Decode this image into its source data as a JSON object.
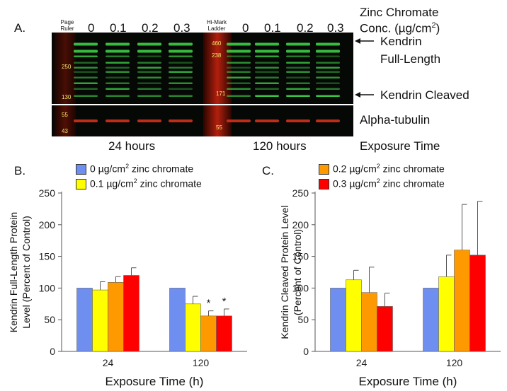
{
  "panelA": {
    "letter": "A.",
    "lane_small_left": "Page\nRuler",
    "lane_small_mid": "Hi-Mark\nLadder",
    "lanes_left": [
      "0",
      "0.1",
      "0.2",
      "0.3"
    ],
    "lanes_right": [
      "0",
      "0.1",
      "0.2",
      "0.3"
    ],
    "conc_title_1": "Zinc Chromate",
    "conc_title_2": "Conc. (µg/cm",
    "conc_sup": "2",
    "conc_close": ")",
    "marker_ruler": [
      "250",
      "130"
    ],
    "marker_hi": [
      "460",
      "238",
      "171"
    ],
    "marker_tubulin_left": [
      "55",
      "43"
    ],
    "marker_tubulin_mid": [
      "55"
    ],
    "label_full_1": "Kendrin",
    "label_full_2": "Full-Length",
    "label_cleaved": "Kendrin Cleaved",
    "label_tubulin": "Alpha-tubulin",
    "time_24": "24 hours",
    "time_120": "120 hours",
    "exposure_label": "Exposure Time",
    "colors": {
      "green_band": "#3fd94a",
      "red_band": "#e0321c",
      "marker_text": "#f5e66b"
    }
  },
  "panelB": {
    "letter": "B."
  },
  "panelC": {
    "letter": "C."
  },
  "legend": [
    {
      "pre": "0 µg/cm",
      "sup": "2",
      "post": " zinc chromate",
      "color": "#6f8ff0"
    },
    {
      "pre": "0.1 µg/cm",
      "sup": "2",
      "post": " zinc chromate",
      "color": "#ffff00"
    },
    {
      "pre": "0.2 µg/cm",
      "sup": "2",
      "post": " zinc chromate",
      "color": "#ff9900"
    },
    {
      "pre": "0.3 µg/cm",
      "sup": "2",
      "post": " zinc chromate",
      "color": "#ff0000"
    }
  ],
  "chart_data": [
    {
      "type": "bar",
      "panel": "B.",
      "categories": [
        "24",
        "120"
      ],
      "series": [
        {
          "name": "0 µg/cm2 zinc chromate",
          "values": [
            100,
            100
          ],
          "errors": [
            0,
            0
          ],
          "color": "#6f8ff0"
        },
        {
          "name": "0.1 µg/cm2 zinc chromate",
          "values": [
            97,
            75
          ],
          "errors": [
            13,
            12
          ],
          "color": "#ffff00"
        },
        {
          "name": "0.2 µg/cm2 zinc chromate",
          "values": [
            109,
            56
          ],
          "errors": [
            9,
            8
          ],
          "color": "#ff9900"
        },
        {
          "name": "0.3 µg/cm2 zinc chromate",
          "values": [
            120,
            56
          ],
          "errors": [
            12,
            11
          ],
          "color": "#ff0000"
        }
      ],
      "significance": [
        [
          "",
          ""
        ],
        [
          "",
          ""
        ],
        [
          "",
          "*"
        ],
        [
          "",
          "*"
        ]
      ],
      "xlabel": "Exposure Time (h)",
      "ylabel_lines": [
        "Kendrin Full-Length Protein",
        "Level (Percent of Control)"
      ],
      "ylim": [
        0,
        250
      ],
      "yticks": [
        0,
        50,
        100,
        150,
        200,
        250
      ],
      "grid": false
    },
    {
      "type": "bar",
      "panel": "C.",
      "categories": [
        "24",
        "120"
      ],
      "series": [
        {
          "name": "0 µg/cm2 zinc chromate",
          "values": [
            100,
            100
          ],
          "errors": [
            0,
            0
          ],
          "color": "#6f8ff0"
        },
        {
          "name": "0.1 µg/cm2 zinc chromate",
          "values": [
            113,
            118
          ],
          "errors": [
            15,
            34
          ],
          "color": "#ffff00"
        },
        {
          "name": "0.2 µg/cm2 zinc chromate",
          "values": [
            93,
            160
          ],
          "errors": [
            40,
            72
          ],
          "color": "#ff9900"
        },
        {
          "name": "0.3 µg/cm2 zinc chromate",
          "values": [
            71,
            152
          ],
          "errors": [
            21,
            85
          ],
          "color": "#ff0000"
        }
      ],
      "significance": [
        [
          "",
          ""
        ],
        [
          "",
          ""
        ],
        [
          "",
          ""
        ],
        [
          "",
          ""
        ]
      ],
      "xlabel": "Exposure Time (h)",
      "ylabel_lines": [
        "Kendrin Cleaved Protein Level",
        "(Percent of Control)"
      ],
      "ylim": [
        0,
        250
      ],
      "yticks": [
        0,
        50,
        100,
        150,
        200,
        250
      ],
      "grid": false
    }
  ]
}
